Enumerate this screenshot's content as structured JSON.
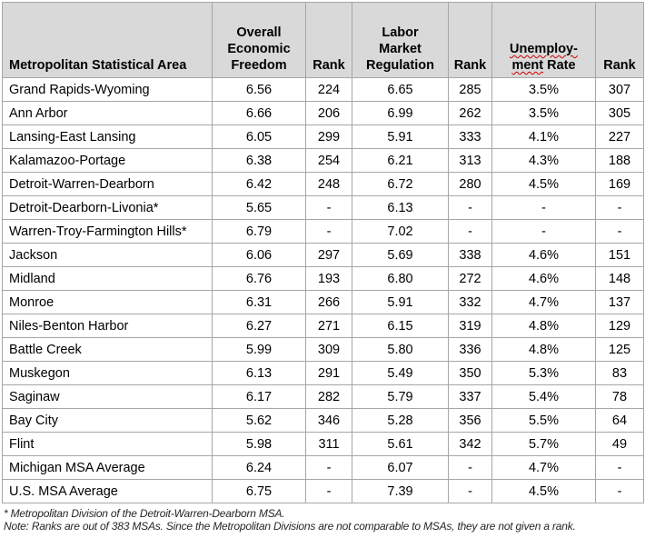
{
  "table": {
    "header": {
      "msa": "Metropolitan Statistical Area",
      "overall_economic_freedom": "Overall\nEconomic\nFreedom",
      "rank1": "Rank",
      "labor_market_regulation": "Labor\nMarket\nRegulation",
      "rank2": "Rank",
      "unemployment_line1": "Unemploy-",
      "unemployment_line2_word": "ment",
      "unemployment_line2_rest": "Rate",
      "rank3": "Rank"
    },
    "rows": [
      {
        "name": "Grand Rapids-Wyoming",
        "oef": "6.56",
        "oef_rank": "224",
        "lmr": "6.65",
        "lmr_rank": "285",
        "unemp": "3.5%",
        "unemp_rank": "307"
      },
      {
        "name": "Ann Arbor",
        "oef": "6.66",
        "oef_rank": "206",
        "lmr": "6.99",
        "lmr_rank": "262",
        "unemp": "3.5%",
        "unemp_rank": "305"
      },
      {
        "name": "Lansing-East Lansing",
        "oef": "6.05",
        "oef_rank": "299",
        "lmr": "5.91",
        "lmr_rank": "333",
        "unemp": "4.1%",
        "unemp_rank": "227"
      },
      {
        "name": "Kalamazoo-Portage",
        "oef": "6.38",
        "oef_rank": "254",
        "lmr": "6.21",
        "lmr_rank": "313",
        "unemp": "4.3%",
        "unemp_rank": "188"
      },
      {
        "name": "Detroit-Warren-Dearborn",
        "oef": "6.42",
        "oef_rank": "248",
        "lmr": "6.72",
        "lmr_rank": "280",
        "unemp": "4.5%",
        "unemp_rank": "169"
      },
      {
        "name": "Detroit-Dearborn-Livonia*",
        "oef": "5.65",
        "oef_rank": "-",
        "lmr": "6.13",
        "lmr_rank": "-",
        "unemp": "-",
        "unemp_rank": "-"
      },
      {
        "name": "Warren-Troy-Farmington Hills*",
        "oef": "6.79",
        "oef_rank": "-",
        "lmr": "7.02",
        "lmr_rank": "-",
        "unemp": "-",
        "unemp_rank": "-"
      },
      {
        "name": "Jackson",
        "oef": "6.06",
        "oef_rank": "297",
        "lmr": "5.69",
        "lmr_rank": "338",
        "unemp": "4.6%",
        "unemp_rank": "151"
      },
      {
        "name": "Midland",
        "oef": "6.76",
        "oef_rank": "193",
        "lmr": "6.80",
        "lmr_rank": "272",
        "unemp": "4.6%",
        "unemp_rank": "148"
      },
      {
        "name": "Monroe",
        "oef": "6.31",
        "oef_rank": "266",
        "lmr": "5.91",
        "lmr_rank": "332",
        "unemp": "4.7%",
        "unemp_rank": "137"
      },
      {
        "name": "Niles-Benton Harbor",
        "oef": "6.27",
        "oef_rank": "271",
        "lmr": "6.15",
        "lmr_rank": "319",
        "unemp": "4.8%",
        "unemp_rank": "129"
      },
      {
        "name": "Battle Creek",
        "oef": "5.99",
        "oef_rank": "309",
        "lmr": "5.80",
        "lmr_rank": "336",
        "unemp": "4.8%",
        "unemp_rank": "125"
      },
      {
        "name": "Muskegon",
        "oef": "6.13",
        "oef_rank": "291",
        "lmr": "5.49",
        "lmr_rank": "350",
        "unemp": "5.3%",
        "unemp_rank": "83"
      },
      {
        "name": "Saginaw",
        "oef": "6.17",
        "oef_rank": "282",
        "lmr": "5.79",
        "lmr_rank": "337",
        "unemp": "5.4%",
        "unemp_rank": "78"
      },
      {
        "name": "Bay City",
        "oef": "5.62",
        "oef_rank": "346",
        "lmr": "5.28",
        "lmr_rank": "356",
        "unemp": "5.5%",
        "unemp_rank": "64"
      },
      {
        "name": "Flint",
        "oef": "5.98",
        "oef_rank": "311",
        "lmr": "5.61",
        "lmr_rank": "342",
        "unemp": "5.7%",
        "unemp_rank": "49"
      },
      {
        "name": "Michigan MSA Average",
        "oef": "6.24",
        "oef_rank": "-",
        "lmr": "6.07",
        "lmr_rank": "-",
        "unemp": "4.7%",
        "unemp_rank": "-"
      },
      {
        "name": "U.S. MSA Average",
        "oef": "6.75",
        "oef_rank": "-",
        "lmr": "7.39",
        "lmr_rank": "-",
        "unemp": "4.5%",
        "unemp_rank": "-"
      }
    ]
  },
  "footnotes": {
    "asterisk_note": "* Metropolitan Division of the Detroit-Warren-Dearborn MSA.",
    "rank_note": "Note: Ranks are out of 383 MSAs. Since the Metropolitan Divisions are not comparable to MSAs, they are not given a rank."
  },
  "colors": {
    "header_background": "#d9d9d9",
    "outer_border": "#7f7f7f",
    "inner_border": "#a6a6a6",
    "spellcheck_squiggle": "#cc0000",
    "text": "#000000"
  }
}
